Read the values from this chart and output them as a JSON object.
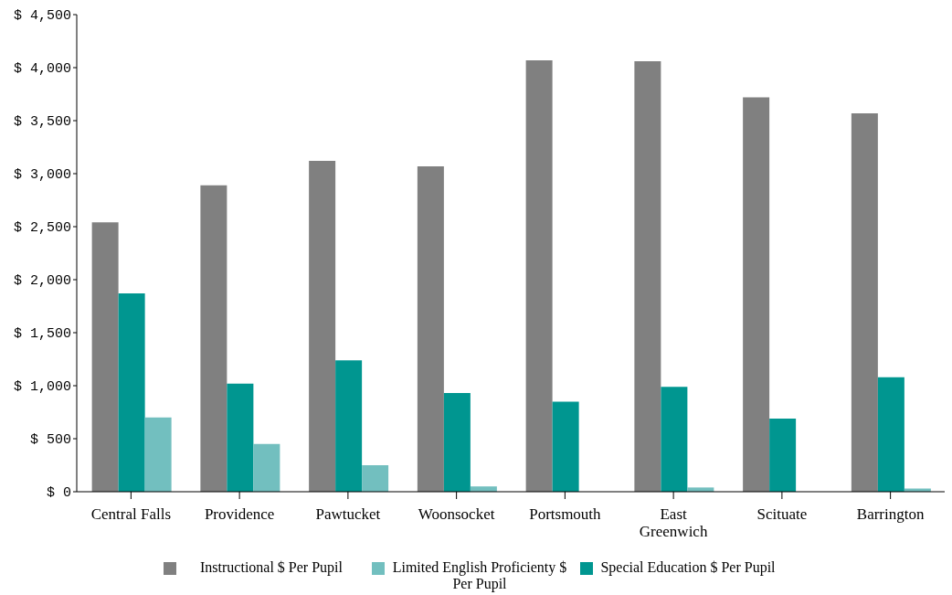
{
  "chart_data": {
    "type": "bar",
    "categories": [
      "Central Falls",
      "Providence",
      "Pawtucket",
      "Woonsocket",
      "Portsmouth",
      "East Greenwich",
      "Scituate",
      "Barrington"
    ],
    "series": [
      {
        "name": "Instructional $ Per Pupil",
        "color": "#808080",
        "values": [
          2540,
          2890,
          3120,
          3070,
          4070,
          4060,
          3720,
          3570
        ]
      },
      {
        "name": "Special Education $ Per Pupil",
        "color": "#009690",
        "values": [
          1870,
          1020,
          1240,
          930,
          850,
          990,
          690,
          1080
        ]
      },
      {
        "name": "Limited English Proficienty $ Per Pupil",
        "color": "#72bfbf",
        "values": [
          700,
          450,
          250,
          50,
          0,
          40,
          0,
          30
        ]
      }
    ],
    "ylim": [
      0,
      4500
    ],
    "yticks": [
      {
        "value": 0,
        "label": "$ 0"
      },
      {
        "value": 500,
        "label": "$ 500"
      },
      {
        "value": 1000,
        "label": "$ 1,000"
      },
      {
        "value": 1500,
        "label": "$ 1,500"
      },
      {
        "value": 2000,
        "label": "$ 2,000"
      },
      {
        "value": 2500,
        "label": "$ 2,500"
      },
      {
        "value": 3000,
        "label": "$ 3,000"
      },
      {
        "value": 3500,
        "label": "$ 3,500"
      },
      {
        "value": 4000,
        "label": "$ 4,000"
      },
      {
        "value": 4500,
        "label": "$ 4,500"
      }
    ],
    "grid": false,
    "legend": "bottom"
  }
}
